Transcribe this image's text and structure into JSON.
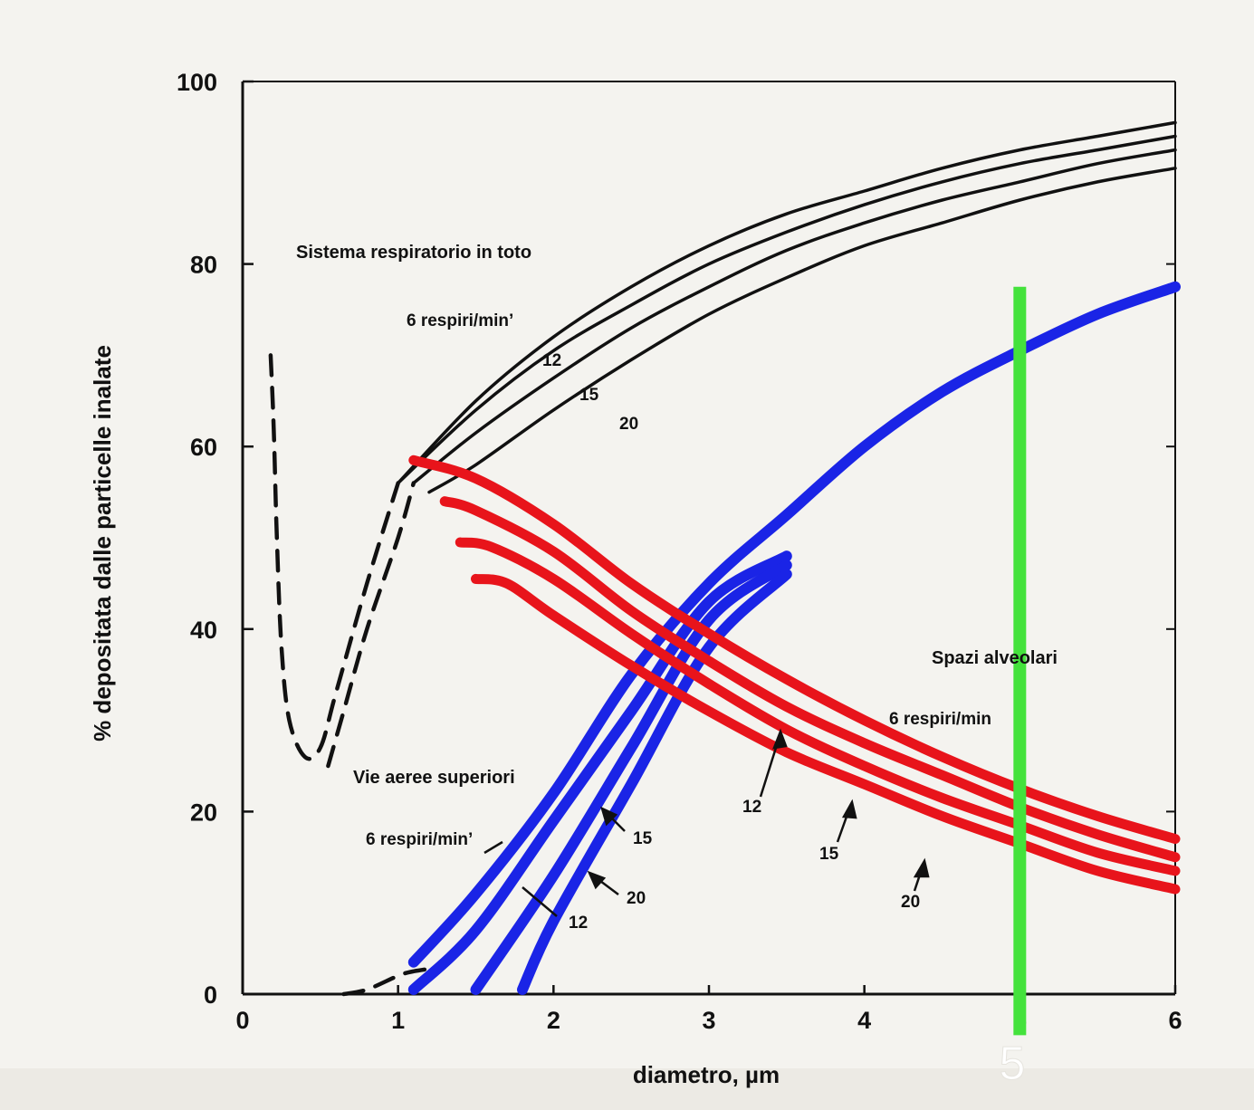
{
  "chart_data": {
    "type": "line",
    "title": "",
    "xlabel": "diametro, µm",
    "ylabel": "% depositata dalle particelle inalate",
    "xlim": [
      0,
      6
    ],
    "ylim": [
      0,
      100
    ],
    "x_ticks": [
      "0",
      "1",
      "2",
      "3",
      "4",
      "5",
      "6"
    ],
    "y_ticks": [
      "0",
      "20",
      "40",
      "60",
      "80",
      "100"
    ],
    "grid": false,
    "annotations": {
      "total": "Sistema respiratorio in toto",
      "alveolar": "Spazi alveolari",
      "upper": "Vie aeree superiori",
      "rate_6": "6 respiri/min’",
      "rate_6_alv": "6 respiri/min",
      "rate_12": "12",
      "rate_15": "15",
      "rate_20": "20",
      "marker": "5"
    },
    "colors": {
      "total": "#111111",
      "alveolar": "#e8141b",
      "upper": "#1a24e6",
      "marker": "#44e23c"
    },
    "series": [
      {
        "group": "total",
        "rate": "6",
        "x": [
          1.0,
          1.5,
          2.0,
          2.5,
          3.0,
          3.5,
          4.0,
          4.5,
          5.0,
          5.5,
          6.0
        ],
        "y": [
          56,
          65,
          72,
          77.5,
          82,
          85.5,
          88,
          90.5,
          92.5,
          94,
          95.5
        ]
      },
      {
        "group": "total",
        "rate": "12",
        "x": [
          1.0,
          1.5,
          2.0,
          2.5,
          3.0,
          3.5,
          4.0,
          4.5,
          5.0,
          5.5,
          6.0
        ],
        "y": [
          56,
          64,
          70.5,
          75.5,
          80,
          83.5,
          86.5,
          89,
          91,
          92.5,
          94
        ]
      },
      {
        "group": "total",
        "rate": "15",
        "x": [
          1.1,
          1.5,
          2.0,
          2.5,
          3.0,
          3.5,
          4.0,
          4.5,
          5.0,
          5.5,
          6.0
        ],
        "y": [
          56,
          61.5,
          67.5,
          73,
          77.5,
          81.5,
          84.5,
          87,
          89,
          91,
          92.5
        ]
      },
      {
        "group": "total",
        "rate": "20",
        "x": [
          1.2,
          1.5,
          2.0,
          2.5,
          3.0,
          3.5,
          4.0,
          4.5,
          5.0,
          5.5,
          6.0
        ],
        "y": [
          55,
          58,
          64,
          69.5,
          74.5,
          78.5,
          82,
          84.5,
          87,
          89,
          90.5
        ]
      },
      {
        "group": "alveolar",
        "rate": "6",
        "x": [
          1.1,
          1.5,
          2.0,
          2.5,
          3.0,
          3.5,
          4.0,
          4.5,
          5.0,
          5.5,
          6.0
        ],
        "y": [
          58.5,
          56.5,
          51.5,
          45,
          39.5,
          34.5,
          30,
          26,
          22.5,
          19.5,
          17
        ]
      },
      {
        "group": "alveolar",
        "rate": "12",
        "x": [
          1.3,
          1.5,
          2.0,
          2.5,
          3.0,
          3.5,
          4.0,
          4.5,
          5.0,
          5.5,
          6.0
        ],
        "y": [
          54,
          53,
          48.5,
          42,
          36.5,
          31.5,
          27.5,
          24,
          20.5,
          17.5,
          15
        ]
      },
      {
        "group": "alveolar",
        "rate": "15",
        "x": [
          1.4,
          1.6,
          2.0,
          2.5,
          3.0,
          3.5,
          4.0,
          4.5,
          5.0,
          5.5,
          6.0
        ],
        "y": [
          49.5,
          49,
          45.5,
          39.5,
          34,
          29,
          25,
          21.5,
          18.5,
          15.5,
          13.5
        ]
      },
      {
        "group": "alveolar",
        "rate": "20",
        "x": [
          1.5,
          1.7,
          2.0,
          2.5,
          3.0,
          3.5,
          4.0,
          4.5,
          5.0,
          5.5,
          6.0
        ],
        "y": [
          45.5,
          45,
          41.5,
          36,
          31,
          26.5,
          23,
          19.5,
          16.5,
          13.5,
          11.5
        ]
      },
      {
        "group": "upper",
        "rate": "6",
        "x": [
          1.1,
          1.5,
          2.0,
          2.5,
          3.0,
          3.5,
          4.0,
          4.5,
          5.0,
          5.5,
          6.0
        ],
        "y": [
          3.5,
          11,
          22,
          35,
          45,
          52.5,
          60,
          66,
          70.5,
          74.5,
          77.5
        ]
      },
      {
        "group": "upper",
        "rate": "12",
        "x": [
          1.1,
          1.5,
          2.0,
          2.5,
          3.0,
          3.5
        ],
        "y": [
          0.5,
          7,
          19,
          31,
          43,
          48
        ]
      },
      {
        "group": "upper",
        "rate": "15",
        "x": [
          1.5,
          2.0,
          2.5,
          3.0,
          3.5
        ],
        "y": [
          0.5,
          13,
          27,
          41,
          47
        ]
      },
      {
        "group": "upper",
        "rate": "20",
        "x": [
          1.8,
          2.0,
          2.5,
          3.0,
          3.5
        ],
        "y": [
          0.5,
          8,
          23,
          38,
          46
        ]
      }
    ],
    "dashed": [
      {
        "x": [
          0.18,
          0.2,
          0.22,
          0.25,
          0.3,
          0.4,
          0.5,
          0.6,
          0.8,
          1.0
        ],
        "y": [
          70,
          62,
          50,
          38,
          30,
          26,
          27,
          33,
          45,
          56
        ]
      },
      {
        "x": [
          0.55,
          0.65,
          0.8,
          1.0,
          1.1
        ],
        "y": [
          25,
          31,
          40,
          50,
          56
        ]
      },
      {
        "x": [
          0.65,
          0.8,
          1.0,
          1.1,
          1.3
        ],
        "y": [
          0,
          0.5,
          2,
          2.5,
          3
        ]
      }
    ]
  }
}
